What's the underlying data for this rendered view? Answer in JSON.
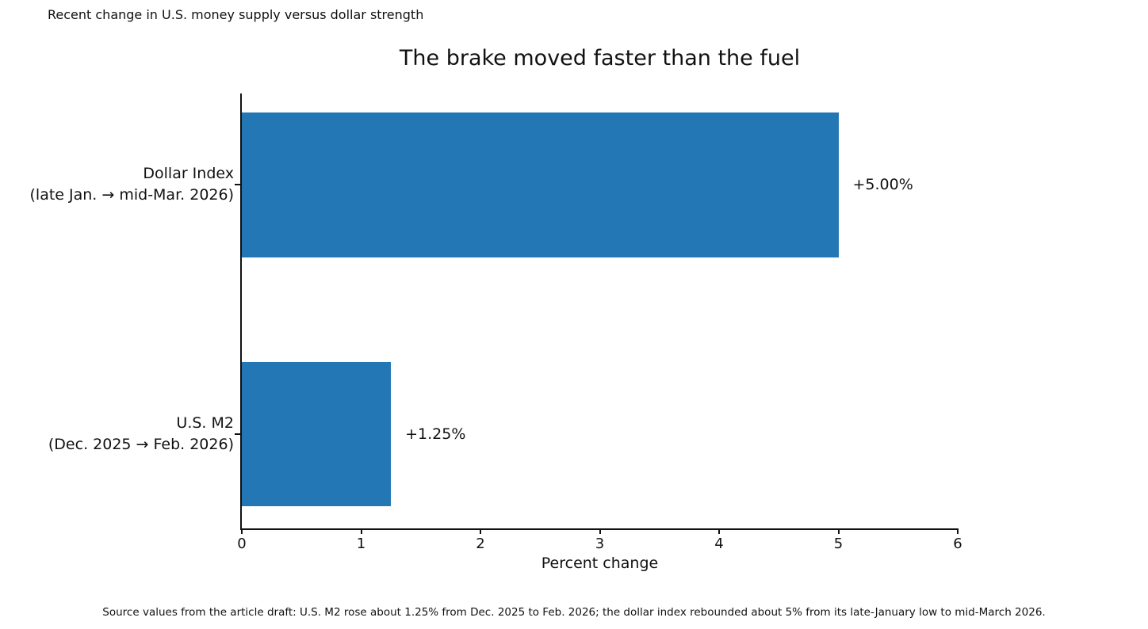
{
  "note_top": "Recent change in U.S. money supply versus dollar strength",
  "footnote": "Source values from the article draft: U.S. M2 rose about 1.25% from Dec. 2025 to Feb. 2026; the dollar index rebounded about 5% from its late-January low to mid-March 2026.",
  "chart_data": {
    "type": "bar",
    "orientation": "horizontal",
    "title": "The brake moved faster than the fuel",
    "categories": [
      {
        "line1": "Dollar Index",
        "line2": "(late Jan. → mid-Mar. 2026)"
      },
      {
        "line1": "U.S. M2",
        "line2": "(Dec. 2025 → Feb. 2026)"
      }
    ],
    "values": [
      5.0,
      1.25
    ],
    "value_labels": [
      "+5.00%",
      "+1.25%"
    ],
    "xlabel": "Percent change",
    "xlim": [
      0,
      6
    ],
    "xticks": [
      "0",
      "1",
      "2",
      "3",
      "4",
      "5",
      "6"
    ],
    "bar_color": "#2277b4",
    "grid": false,
    "legend": false
  }
}
